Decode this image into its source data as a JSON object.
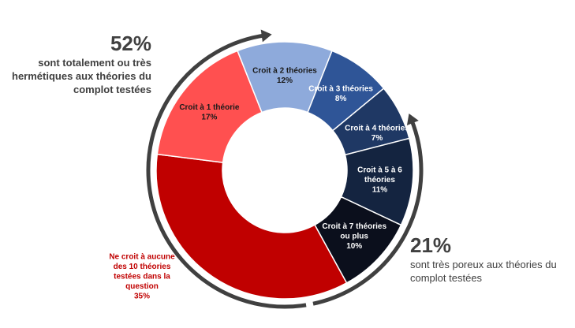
{
  "chart_data": {
    "type": "pie",
    "donut": true,
    "slices": [
      {
        "label_lines": [
          "Croit à 2 théories",
          "12%"
        ],
        "value": 12,
        "color": "#8eaadb",
        "text_color": "#1a1a1a"
      },
      {
        "label_lines": [
          "Croit à 3 théories",
          "8%"
        ],
        "value": 8,
        "color": "#2f5597",
        "text_color": "#ffffff"
      },
      {
        "label_lines": [
          "Croit à 4 théories",
          "7%"
        ],
        "value": 7,
        "color": "#1f3864",
        "text_color": "#ffffff"
      },
      {
        "label_lines": [
          "Croit à 5 à 6",
          "théories",
          "11%"
        ],
        "value": 11,
        "color": "#142440",
        "text_color": "#ffffff"
      },
      {
        "label_lines": [
          "Croit à 7 théories",
          "ou plus",
          "10%"
        ],
        "value": 10,
        "color": "#0b0f1c",
        "text_color": "#ffffff"
      },
      {
        "label_lines": [
          "Ne croit à aucune",
          "des 10 théories",
          "testées dans la",
          "question",
          "35%"
        ],
        "value": 35,
        "color": "#c00000",
        "text_color": "#c00000",
        "outside": true
      },
      {
        "label_lines": [
          "Croit à 1 théorie",
          "17%"
        ],
        "value": 17,
        "color": "#ff5050",
        "text_color": "#1a1a1a"
      }
    ],
    "callouts": {
      "left": {
        "pct": "52%",
        "desc": "sont totalement ou très hermétiques aux théories du complot testées"
      },
      "right": {
        "pct": "21%",
        "desc": "sont très poreux aux théories du complot testées"
      }
    },
    "arrow_color": "#404040"
  }
}
